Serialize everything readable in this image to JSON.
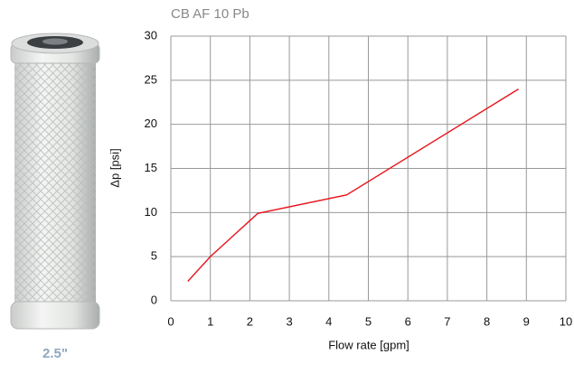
{
  "chart_data": {
    "type": "line",
    "title": "CB AF 10 Pb",
    "xlabel": "Flow rate [gpm]",
    "ylabel": "Δp [psi]",
    "x": [
      0.43,
      1.0,
      2.2,
      4.45,
      8.8
    ],
    "values": [
      2.2,
      5.0,
      9.9,
      12.0,
      24.0
    ],
    "color": "#e8141c",
    "xlim": [
      0,
      10
    ],
    "xticks": [
      0,
      1,
      2,
      3,
      4,
      5,
      6,
      7,
      8,
      9,
      10
    ],
    "ylim": [
      0,
      30
    ],
    "yticks": [
      0,
      5,
      10,
      15,
      20,
      25,
      30
    ],
    "grid": true
  },
  "caption": "2.5\""
}
